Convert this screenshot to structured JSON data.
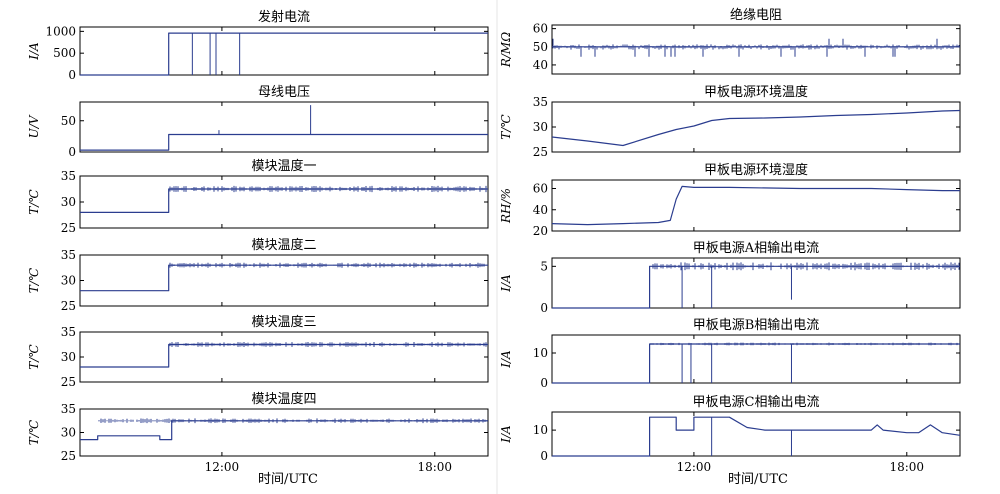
{
  "figure": {
    "xaxis_title": "时间/UTC",
    "colors": {
      "trace": "#2b3d8f",
      "frame": "#000000",
      "background": "#ffffff"
    }
  },
  "chart_data": [
    {
      "type": "line",
      "title": "发射电流",
      "ylabel": "I/A",
      "yticks": [
        "0",
        "500",
        "1000"
      ],
      "ylim": [
        0,
        1100
      ],
      "xlim": [
        "08:00",
        "19:30"
      ],
      "xticks": [
        "12:00",
        "18:00"
      ],
      "series": [
        {
          "x": [
            "08:00",
            "10:30",
            "10:30",
            "19:30"
          ],
          "y": [
            0,
            0,
            960,
            960
          ]
        }
      ],
      "spikes": [
        {
          "x": "11:10",
          "from": 960,
          "to": 0
        },
        {
          "x": "11:40",
          "from": 960,
          "to": 0
        },
        {
          "x": "11:50",
          "from": 960,
          "to": 0
        },
        {
          "x": "12:30",
          "from": 960,
          "to": 0
        }
      ]
    },
    {
      "type": "line",
      "title": "母线电压",
      "ylabel": "U/V",
      "yticks": [
        "0",
        "50"
      ],
      "ylim": [
        0,
        80
      ],
      "xlim": [
        "08:00",
        "19:30"
      ],
      "xticks": [
        "12:00",
        "18:00"
      ],
      "series": [
        {
          "x": [
            "08:00",
            "10:30",
            "10:30",
            "19:30"
          ],
          "y": [
            3,
            3,
            28,
            28
          ]
        }
      ],
      "spikes": [
        {
          "x": "11:55",
          "from": 28,
          "to": 35
        },
        {
          "x": "14:30",
          "from": 28,
          "to": 75
        }
      ]
    },
    {
      "type": "line",
      "title": "模块温度一",
      "ylabel": "T/℃",
      "yticks": [
        "25",
        "30",
        "35"
      ],
      "ylim": [
        25,
        35
      ],
      "xlim": [
        "08:00",
        "19:30"
      ],
      "xticks": [
        "12:00",
        "18:00"
      ],
      "series": [
        {
          "x": [
            "08:00",
            "10:30",
            "10:30",
            "19:30"
          ],
          "y": [
            28,
            28,
            32.5,
            32.5
          ]
        }
      ]
    },
    {
      "type": "line",
      "title": "模块温度二",
      "ylabel": "T/℃",
      "yticks": [
        "25",
        "30",
        "35"
      ],
      "ylim": [
        25,
        35
      ],
      "xlim": [
        "08:00",
        "19:30"
      ],
      "xticks": [
        "12:00",
        "18:00"
      ],
      "series": [
        {
          "x": [
            "08:00",
            "10:30",
            "10:30",
            "19:30"
          ],
          "y": [
            28,
            28,
            33,
            33
          ]
        }
      ]
    },
    {
      "type": "line",
      "title": "模块温度三",
      "ylabel": "T/℃",
      "yticks": [
        "25",
        "30",
        "35"
      ],
      "ylim": [
        25,
        35
      ],
      "xlim": [
        "08:00",
        "19:30"
      ],
      "xticks": [
        "12:00",
        "18:00"
      ],
      "series": [
        {
          "x": [
            "08:00",
            "10:30",
            "10:30",
            "19:30"
          ],
          "y": [
            28,
            28,
            32.5,
            32.5
          ]
        }
      ]
    },
    {
      "type": "line",
      "title": "模块温度四",
      "ylabel": "T/℃",
      "yticks": [
        "25",
        "30",
        "35"
      ],
      "ylim": [
        25,
        35
      ],
      "xlim": [
        "08:00",
        "19:30"
      ],
      "xticks": [
        "12:00",
        "18:00"
      ],
      "series": [
        {
          "x": [
            "08:00",
            "08:30",
            "08:30",
            "10:15",
            "10:15",
            "10:35",
            "10:35",
            "19:30"
          ],
          "y": [
            28.5,
            28.5,
            29.3,
            29.3,
            28.5,
            28.5,
            32.5,
            32.5
          ]
        }
      ]
    },
    {
      "type": "line",
      "title": "绝缘电阻",
      "ylabel": "R/MΩ",
      "yticks": [
        "40",
        "50",
        "60"
      ],
      "ylim": [
        35,
        62
      ],
      "xlim": [
        "08:00",
        "19:30"
      ],
      "xticks": [
        "12:00",
        "18:00"
      ],
      "series": [
        {
          "x": [
            "08:00",
            "19:30"
          ],
          "y": [
            50,
            50
          ]
        }
      ]
    },
    {
      "type": "line",
      "title": "甲板电源环境温度",
      "ylabel": "T/℃",
      "yticks": [
        "25",
        "30",
        "35"
      ],
      "ylim": [
        25,
        35
      ],
      "xlim": [
        "08:00",
        "19:30"
      ],
      "xticks": [
        "12:00",
        "18:00"
      ],
      "series": [
        {
          "x": [
            "08:00",
            "09:00",
            "10:00",
            "11:00",
            "11:30",
            "12:00",
            "12:30",
            "13:00",
            "14:00",
            "15:00",
            "16:00",
            "17:00",
            "18:00",
            "19:00",
            "19:30"
          ],
          "y": [
            28,
            27.2,
            26.3,
            28.5,
            29.5,
            30.2,
            31.3,
            31.7,
            31.8,
            32,
            32.3,
            32.5,
            32.8,
            33.2,
            33.3
          ]
        }
      ]
    },
    {
      "type": "line",
      "title": "甲板电源环境湿度",
      "ylabel": "RH/%",
      "yticks": [
        "20",
        "40",
        "60"
      ],
      "ylim": [
        20,
        68
      ],
      "xlim": [
        "08:00",
        "19:30"
      ],
      "xticks": [
        "12:00",
        "18:00"
      ],
      "series": [
        {
          "x": [
            "08:00",
            "09:00",
            "10:00",
            "11:00",
            "11:20",
            "11:30",
            "11:40",
            "12:00",
            "13:00",
            "15:00",
            "17:00",
            "18:00",
            "19:00",
            "19:30"
          ],
          "y": [
            27,
            26,
            27,
            28,
            30,
            50,
            62,
            61,
            61,
            60,
            60,
            59,
            58,
            58
          ]
        }
      ]
    },
    {
      "type": "line",
      "title": "甲板电源A相输出电流",
      "ylabel": "I/A",
      "yticks": [
        "0",
        "5"
      ],
      "ylim": [
        0,
        6
      ],
      "xlim": [
        "08:00",
        "19:30"
      ],
      "xticks": [
        "12:00",
        "18:00"
      ],
      "series": [
        {
          "x": [
            "08:00",
            "10:45",
            "10:45",
            "19:30"
          ],
          "y": [
            0,
            0,
            5,
            5
          ]
        }
      ],
      "spikes": [
        {
          "x": "11:40",
          "from": 5,
          "to": 0
        },
        {
          "x": "12:30",
          "from": 5,
          "to": 0
        },
        {
          "x": "14:45",
          "from": 5,
          "to": 1
        }
      ]
    },
    {
      "type": "line",
      "title": "甲板电源B相输出电流",
      "ylabel": "I/A",
      "yticks": [
        "0",
        "10"
      ],
      "ylim": [
        0,
        16
      ],
      "xlim": [
        "08:00",
        "19:30"
      ],
      "xticks": [
        "12:00",
        "18:00"
      ],
      "series": [
        {
          "x": [
            "08:00",
            "10:45",
            "10:45",
            "19:30"
          ],
          "y": [
            0,
            0,
            13,
            13
          ]
        }
      ],
      "spikes": [
        {
          "x": "11:40",
          "from": 13,
          "to": 0
        },
        {
          "x": "11:55",
          "from": 13,
          "to": 0
        },
        {
          "x": "12:30",
          "from": 13,
          "to": 0
        },
        {
          "x": "14:45",
          "from": 13,
          "to": 0
        }
      ]
    },
    {
      "type": "line",
      "title": "甲板电源C相输出电流",
      "ylabel": "I/A",
      "yticks": [
        "0",
        "10"
      ],
      "ylim": [
        0,
        17
      ],
      "xlim": [
        "08:00",
        "19:30"
      ],
      "xticks": [
        "12:00",
        "18:00"
      ],
      "series": [
        {
          "x": [
            "08:00",
            "10:45",
            "10:45",
            "11:30",
            "11:30",
            "12:00",
            "12:00",
            "12:15",
            "12:15",
            "13:00",
            "13:30",
            "14:00",
            "15:00",
            "16:00",
            "17:00",
            "17:10",
            "17:20",
            "18:00",
            "18:20",
            "18:40",
            "19:00",
            "19:30"
          ],
          "y": [
            0,
            0,
            15,
            15,
            10,
            10,
            15,
            15,
            15,
            15,
            11,
            10,
            10,
            10,
            10,
            12,
            10,
            9,
            9,
            12,
            9,
            8
          ]
        }
      ],
      "spikes": [
        {
          "x": "12:30",
          "from": 15,
          "to": 0
        },
        {
          "x": "14:45",
          "from": 10,
          "to": 0
        }
      ]
    }
  ]
}
